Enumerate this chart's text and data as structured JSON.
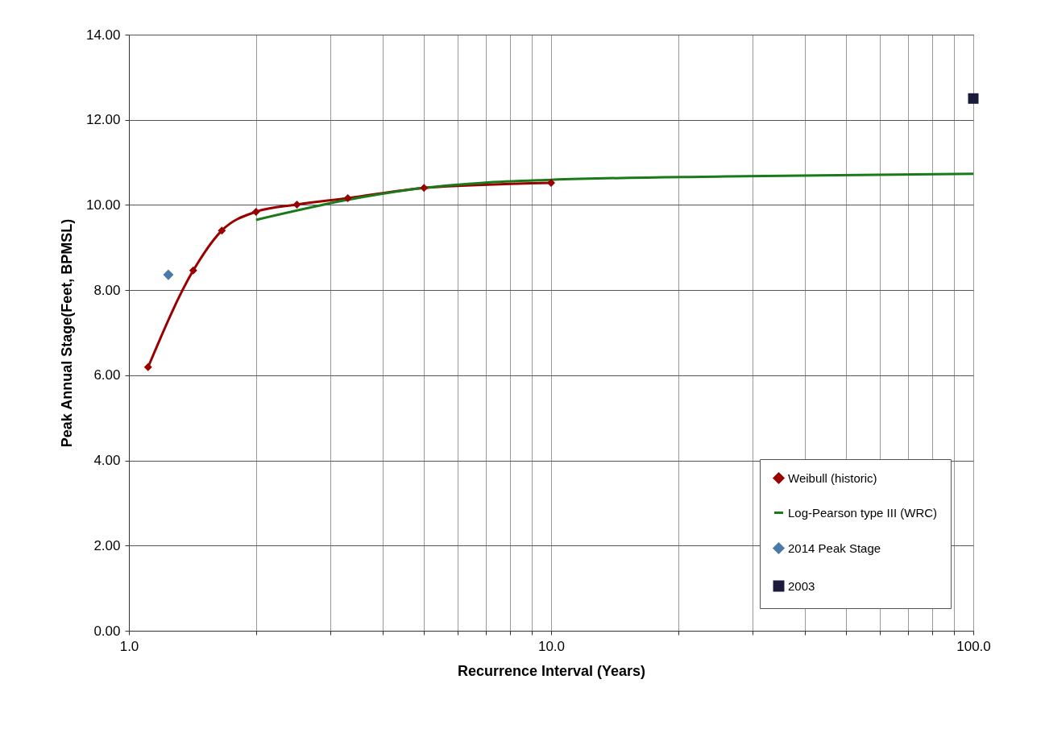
{
  "chart_data": {
    "type": "line",
    "xlabel": "Recurrence Interval (Years)",
    "ylabel": "Peak Annual Stage(Feet, BPMSL)",
    "log": "x",
    "grid": true,
    "legend": "bottom right",
    "xlim": [
      1,
      100
    ],
    "ylim": [
      0,
      14
    ],
    "xticks": [
      {
        "value": 1,
        "label": "1.0"
      },
      {
        "value": 2,
        "label": null
      },
      {
        "value": 3,
        "label": null
      },
      {
        "value": 4,
        "label": null
      },
      {
        "value": 5,
        "label": null
      },
      {
        "value": 6,
        "label": null
      },
      {
        "value": 7,
        "label": null
      },
      {
        "value": 8,
        "label": null
      },
      {
        "value": 9,
        "label": null
      },
      {
        "value": 10,
        "label": "10.0"
      },
      {
        "value": 20,
        "label": null
      },
      {
        "value": 30,
        "label": null
      },
      {
        "value": 40,
        "label": null
      },
      {
        "value": 50,
        "label": null
      },
      {
        "value": 60,
        "label": null
      },
      {
        "value": 70,
        "label": null
      },
      {
        "value": 80,
        "label": null
      },
      {
        "value": 90,
        "label": null
      },
      {
        "value": 100,
        "label": "100.0"
      }
    ],
    "yticks": [
      {
        "value": 0,
        "label": "0.00"
      },
      {
        "value": 2,
        "label": "2.00"
      },
      {
        "value": 4,
        "label": "4.00"
      },
      {
        "value": 6,
        "label": "6.00"
      },
      {
        "value": 8,
        "label": "8.00"
      },
      {
        "value": 10,
        "label": "10.00"
      },
      {
        "value": 12,
        "label": "12.00"
      },
      {
        "value": 14,
        "label": "14.00"
      }
    ],
    "series": [
      {
        "name": "Weibull (historic)",
        "marker": "diamond",
        "color": "#990000",
        "x": [
          1.11,
          1.42,
          1.66,
          2.0,
          2.5,
          3.3,
          5.0,
          10.0
        ],
        "values": [
          6.19,
          8.46,
          9.4,
          9.84,
          10.01,
          10.16,
          10.4,
          10.52
        ]
      },
      {
        "name": "Log-Pearson type III (WRC)",
        "marker": "none",
        "color": "#1a7a1a",
        "x": [
          2.0,
          3.3,
          5.0,
          6.9,
          10.0,
          25.9,
          100
        ],
        "values": [
          9.65,
          10.12,
          10.4,
          10.52,
          10.59,
          10.67,
          10.73
        ]
      },
      {
        "name": "2014 Peak Stage",
        "type": "scatter",
        "marker": "diamond",
        "color": "#4a7aa8",
        "x": [
          1.24
        ],
        "values": [
          8.36
        ]
      },
      {
        "name": "2003",
        "type": "scatter",
        "marker": "square",
        "color": "#1a1a3a",
        "x": [
          100
        ],
        "values": [
          12.5
        ]
      }
    ]
  }
}
